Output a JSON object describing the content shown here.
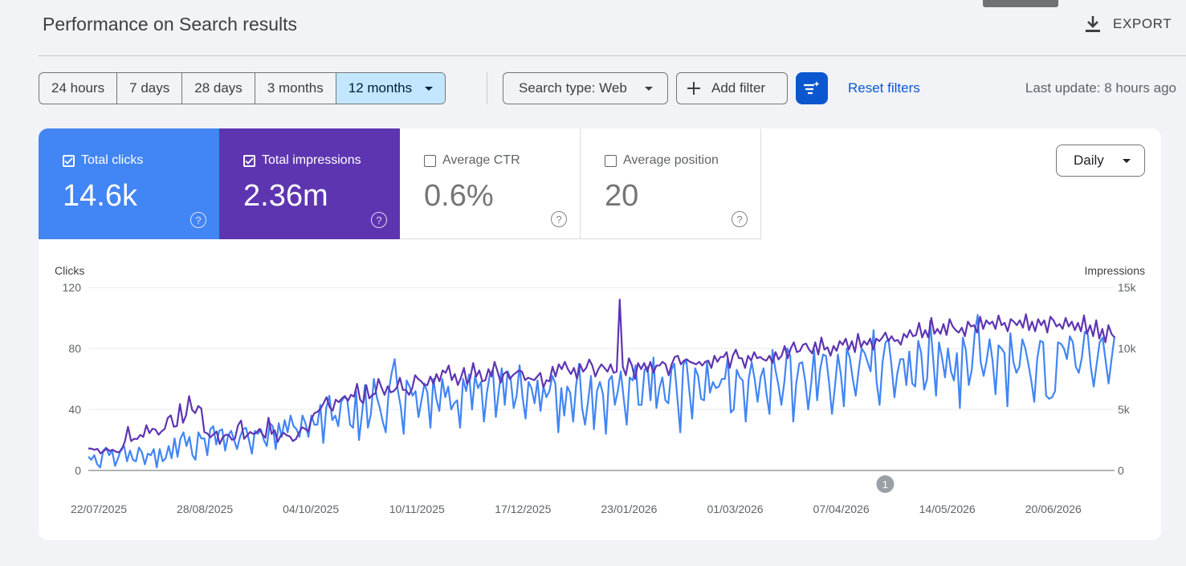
{
  "header": {
    "title": "Performance on Search results",
    "export_label": "EXPORT"
  },
  "toolbar": {
    "ranges": [
      "24 hours",
      "7 days",
      "28 days",
      "3 months",
      "12 months"
    ],
    "active_range": "12 months",
    "search_type": "Search type: Web",
    "add_filter": "Add filter",
    "reset_filters": "Reset filters",
    "last_update": "Last update: 8 hours ago"
  },
  "metrics": {
    "clicks": {
      "label": "Total clicks",
      "value": "14.6k",
      "checked": true,
      "color": "#4285f4"
    },
    "impressions": {
      "label": "Total impressions",
      "value": "2.36m",
      "checked": true,
      "color": "#5e35b1"
    },
    "ctr": {
      "label": "Average CTR",
      "value": "0.6%",
      "checked": false
    },
    "position": {
      "label": "Average position",
      "value": "20",
      "checked": false
    },
    "help_glyph": "?"
  },
  "granularity": "Daily",
  "chart_data": {
    "type": "line",
    "left_axis": {
      "title": "Clicks",
      "ticks": [
        "120",
        "80",
        "40",
        "0"
      ],
      "range": [
        0,
        120
      ]
    },
    "right_axis": {
      "title": "Impressions",
      "ticks": [
        "15k",
        "10k",
        "5k",
        "0"
      ],
      "range": [
        0,
        15000
      ]
    },
    "x_ticks": [
      "22/07/2025",
      "28/08/2025",
      "04/10/2025",
      "10/11/2025",
      "17/12/2025",
      "23/01/2026",
      "01/03/2026",
      "07/04/2026",
      "14/05/2026",
      "20/06/2026"
    ],
    "x_range": [
      "22/07/2025",
      "15/07/2026"
    ],
    "annotation": {
      "label": "1",
      "date": "26/04/2026"
    },
    "grid": true,
    "series": [
      {
        "name": "Total clicks",
        "axis": "left",
        "color": "#4285f4",
        "values": [
          9,
          7,
          10,
          4,
          2,
          13,
          15,
          10,
          13,
          3,
          8,
          14,
          16,
          6,
          13,
          7,
          6,
          15,
          12,
          4,
          11,
          10,
          14,
          2,
          14,
          6,
          8,
          16,
          8,
          21,
          9,
          21,
          25,
          16,
          22,
          10,
          7,
          25,
          21,
          21,
          10,
          27,
          29,
          17,
          26,
          27,
          13,
          23,
          26,
          20,
          14,
          22,
          27,
          28,
          20,
          11,
          26,
          24,
          27,
          20,
          16,
          31,
          29,
          14,
          31,
          22,
          33,
          25,
          36,
          29,
          27,
          22,
          36,
          31,
          22,
          36,
          30,
          30,
          43,
          18,
          41,
          49,
          33,
          36,
          29,
          45,
          48,
          47,
          30,
          28,
          52,
          20,
          37,
          56,
          28,
          37,
          60,
          48,
          41,
          32,
          25,
          52,
          64,
          73,
          53,
          42,
          24,
          59,
          55,
          49,
          52,
          35,
          46,
          57,
          51,
          28,
          60,
          47,
          39,
          60,
          48,
          55,
          40,
          44,
          46,
          28,
          60,
          52,
          63,
          40,
          62,
          54,
          58,
          32,
          51,
          63,
          66,
          35,
          52,
          67,
          43,
          65,
          60,
          41,
          49,
          69,
          48,
          34,
          58,
          54,
          44,
          59,
          39,
          55,
          48,
          52,
          62,
          57,
          25,
          54,
          36,
          55,
          51,
          32,
          56,
          70,
          41,
          30,
          45,
          62,
          27,
          52,
          58,
          50,
          24,
          59,
          62,
          43,
          52,
          65,
          47,
          30,
          61,
          59,
          69,
          43,
          43,
          66,
          68,
          46,
          74,
          41,
          54,
          61,
          46,
          44,
          66,
          70,
          48,
          25,
          69,
          73,
          53,
          34,
          67,
          62,
          47,
          46,
          71,
          51,
          58,
          54,
          55,
          60,
          60,
          74,
          38,
          40,
          66,
          61,
          59,
          32,
          60,
          71,
          60,
          45,
          61,
          67,
          50,
          37,
          79,
          66,
          56,
          43,
          58,
          80,
          75,
          32,
          57,
          70,
          71,
          59,
          40,
          57,
          79,
          46,
          66,
          76,
          75,
          58,
          37,
          55,
          76,
          63,
          42,
          80,
          74,
          60,
          49,
          66,
          80,
          77,
          71,
          65,
          92,
          58,
          43,
          71,
          84,
          86,
          69,
          48,
          64,
          73,
          73,
          56,
          78,
          57,
          55,
          85,
          77,
          53,
          60,
          98,
          74,
          49,
          84,
          74,
          61,
          80,
          65,
          59,
          77,
          41,
          87,
          79,
          56,
          66,
          90,
          102,
          71,
          62,
          72,
          86,
          72,
          50,
          82,
          80,
          77,
          42,
          90,
          71,
          64,
          68,
          86,
          80,
          70,
          59,
          45,
          73,
          85,
          84,
          49,
          47,
          48,
          52,
          84,
          83,
          80,
          73,
          88,
          84,
          68,
          64,
          74,
          91,
          89,
          68,
          55,
          70,
          84,
          87,
          72,
          57,
          73,
          88
        ]
      },
      {
        "name": "Total impressions",
        "axis": "right",
        "color": "#5e35b1",
        "values": [
          1800,
          1780,
          1700,
          1770,
          1400,
          1570,
          1800,
          1600,
          1700,
          1540,
          1480,
          1740,
          2400,
          3580,
          2410,
          2600,
          2580,
          2920,
          2750,
          3710,
          3060,
          3420,
          3350,
          2930,
          3210,
          3400,
          4300,
          4510,
          3580,
          3640,
          5440,
          3910,
          4520,
          6100,
          4960,
          4700,
          5280,
          5070,
          3130,
          3030,
          2720,
          2970,
          3190,
          2170,
          2720,
          2930,
          2910,
          2510,
          2600,
          3700,
          4090,
          2590,
          2880,
          3150,
          2990,
          3070,
          3400,
          2960,
          2680,
          4330,
          2990,
          3300,
          2340,
          2840,
          3080,
          2880,
          2790,
          2410,
          2580,
          3100,
          3540,
          3400,
          3200,
          4200,
          4700,
          4800,
          5050,
          5500,
          6000,
          5200,
          4900,
          5800,
          5600,
          5900,
          6100,
          5700,
          6200,
          6050,
          7100,
          5800,
          5500,
          7000,
          5900,
          6200,
          6300,
          7500,
          6800,
          6200,
          6900,
          6400,
          6500,
          6800,
          7600,
          6600,
          6600,
          6200,
          6700,
          7800,
          7500,
          7300,
          7000,
          7000,
          7700,
          7100,
          7900,
          7300,
          8200,
          8000,
          8600,
          7400,
          7900,
          7000,
          7600,
          8400,
          7100,
          7500,
          8800,
          7700,
          8200,
          7300,
          7400,
          8300,
          7700,
          8900,
          8100,
          7200,
          7900,
          8100,
          7500,
          7800,
          8000,
          8200,
          8100,
          7400,
          7600,
          7500,
          7400,
          7700,
          8000,
          6800,
          7400,
          7300,
          8500,
          7700,
          8700,
          8300,
          8900,
          8300,
          7900,
          8400,
          7500,
          8700,
          8100,
          8400,
          9100,
          8600,
          7700,
          8300,
          8700,
          8400,
          8100,
          8700,
          8000,
          8100,
          14000,
          8500,
          7800,
          9200,
          8600,
          7500,
          8800,
          8300,
          8800,
          8100,
          8900,
          8000,
          8600,
          8600,
          8900,
          8700,
          7800,
          8700,
          9300,
          9400,
          8700,
          9000,
          9100,
          8900,
          8800,
          8700,
          8900,
          8600,
          8900,
          9000,
          8400,
          9400,
          8900,
          9300,
          9300,
          9700,
          8400,
          9400,
          9900,
          9200,
          9200,
          8400,
          9400,
          9000,
          9700,
          9200,
          9300,
          9100,
          9000,
          9400,
          8800,
          9700,
          9100,
          9400,
          10200,
          9200,
          10000,
          10500,
          9700,
          9800,
          10300,
          10400,
          9900,
          9600,
          10500,
          9500,
          10900,
          9900,
          10100,
          9400,
          10200,
          9800,
          10600,
          10300,
          10800,
          9900,
          10600,
          9700,
          11200,
          10100,
          10600,
          10300,
          10800,
          9900,
          10800,
          10600,
          10900,
          11300,
          10600,
          11000,
          10600,
          10700,
          10300,
          11200,
          10900,
          11500,
          11000,
          11100,
          12100,
          10900,
          11500,
          10900,
          12500,
          11200,
          11600,
          11200,
          12000,
          11100,
          12400,
          11800,
          11500,
          11300,
          11700,
          11000,
          12200,
          11800,
          11900,
          11300,
          12600,
          11600,
          12300,
          12000,
          12200,
          11600,
          12700,
          11900,
          12100,
          11400,
          12400,
          12200,
          11900,
          12300,
          11700,
          12800,
          11500,
          12200,
          11400,
          12400,
          11900,
          12300,
          11300,
          12600,
          12300,
          11800,
          12000,
          11600,
          12500,
          11800,
          12200,
          11500,
          12100,
          11400,
          12700,
          11200,
          11900,
          11000,
          12300,
          10800,
          11600,
          10500,
          11900,
          11200,
          10900
        ]
      }
    ]
  }
}
